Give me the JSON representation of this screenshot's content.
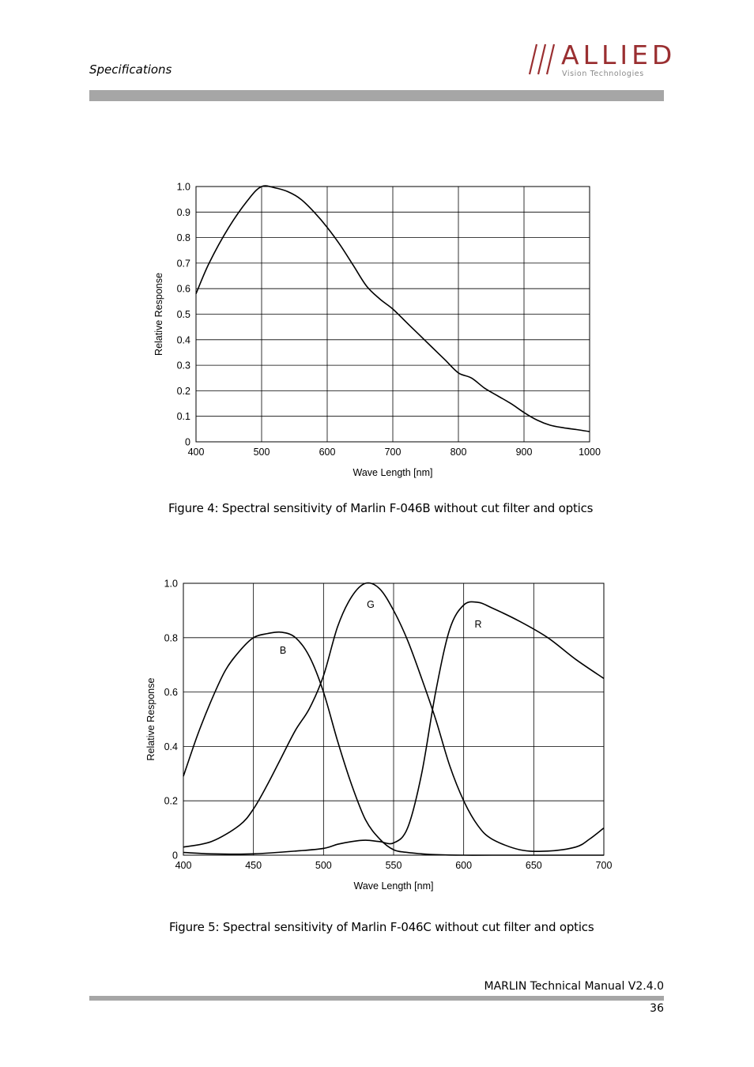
{
  "header": {
    "section": "Specifications",
    "logo_word": "ALLIED",
    "logo_tagline": "Vision Technologies",
    "logo_color": "#9a2f31"
  },
  "figures": [
    {
      "caption": "Figure 4: Spectral sensitivity of Marlin F-046B without cut filter and optics"
    },
    {
      "caption": "Figure 5: Spectral sensitivity of Marlin F-046C without cut filter and optics"
    }
  ],
  "chart_data": [
    {
      "type": "line",
      "xlabel": "Wave Length [nm]",
      "ylabel": "Relative Response",
      "xlim": [
        400,
        1000
      ],
      "ylim": [
        0,
        1.0
      ],
      "x_ticks": [
        400,
        500,
        600,
        700,
        800,
        900,
        1000
      ],
      "x_tick_labels": [
        "400",
        "500",
        "600",
        "700",
        "800",
        "900",
        "1000"
      ],
      "y_ticks": [
        0,
        0.1,
        0.2,
        0.3,
        0.4,
        0.5,
        0.6,
        0.7,
        0.8,
        0.9,
        1.0
      ],
      "y_tick_labels": [
        "0",
        "0.1",
        "0.2",
        "0.3",
        "0.4",
        "0.5",
        "0.6",
        "0.7",
        "0.8",
        "0.9",
        "1.0"
      ],
      "grid": true,
      "series": [
        {
          "x": [
            400,
            420,
            450,
            480,
            500,
            520,
            540,
            560,
            580,
            600,
            620,
            640,
            660,
            680,
            700,
            720,
            740,
            760,
            780,
            800,
            820,
            840,
            860,
            880,
            900,
            920,
            940,
            960,
            980,
            1000
          ],
          "values": [
            0.58,
            0.7,
            0.84,
            0.95,
            1.0,
            0.995,
            0.98,
            0.95,
            0.9,
            0.84,
            0.77,
            0.69,
            0.61,
            0.56,
            0.52,
            0.47,
            0.42,
            0.37,
            0.32,
            0.27,
            0.25,
            0.21,
            0.18,
            0.15,
            0.115,
            0.085,
            0.065,
            0.055,
            0.048,
            0.04
          ]
        }
      ]
    },
    {
      "type": "line",
      "xlabel": "Wave Length [nm]",
      "ylabel": "Relative Response",
      "xlim": [
        400,
        700
      ],
      "ylim": [
        0,
        1.0
      ],
      "x_ticks": [
        400,
        450,
        500,
        550,
        600,
        650,
        700
      ],
      "x_tick_labels": [
        "400",
        "450",
        "500",
        "550",
        "600",
        "650",
        "700"
      ],
      "y_ticks": [
        0,
        0.2,
        0.4,
        0.6,
        0.8,
        1.0
      ],
      "y_tick_labels": [
        "0",
        "0.2",
        "0.4",
        "0.6",
        "0.8",
        "1.0"
      ],
      "grid": true,
      "series": [
        {
          "name": "B",
          "x": [
            400,
            410,
            420,
            430,
            440,
            450,
            460,
            470,
            480,
            490,
            500,
            510,
            520,
            530,
            540,
            550,
            560,
            570,
            580,
            600,
            620,
            650,
            680,
            700
          ],
          "values": [
            0.29,
            0.44,
            0.57,
            0.68,
            0.75,
            0.8,
            0.815,
            0.82,
            0.8,
            0.73,
            0.6,
            0.42,
            0.26,
            0.13,
            0.06,
            0.02,
            0.01,
            0.005,
            0.002,
            0.0,
            0.0,
            0.0,
            0.0,
            0.0
          ]
        },
        {
          "name": "G",
          "x": [
            400,
            420,
            440,
            450,
            460,
            470,
            480,
            490,
            500,
            510,
            520,
            530,
            540,
            550,
            560,
            570,
            580,
            590,
            600,
            610,
            620,
            640,
            660,
            680,
            690,
            700
          ],
          "values": [
            0.03,
            0.05,
            0.11,
            0.17,
            0.26,
            0.36,
            0.46,
            0.54,
            0.66,
            0.84,
            0.95,
            1.0,
            0.98,
            0.9,
            0.79,
            0.65,
            0.5,
            0.33,
            0.2,
            0.11,
            0.06,
            0.02,
            0.015,
            0.03,
            0.06,
            0.1
          ]
        },
        {
          "name": "R",
          "x": [
            400,
            420,
            450,
            480,
            500,
            510,
            520,
            530,
            540,
            550,
            560,
            570,
            580,
            590,
            600,
            610,
            620,
            640,
            660,
            680,
            700
          ],
          "values": [
            0.01,
            0.005,
            0.005,
            0.015,
            0.025,
            0.04,
            0.05,
            0.055,
            0.05,
            0.045,
            0.1,
            0.3,
            0.6,
            0.83,
            0.92,
            0.93,
            0.91,
            0.86,
            0.8,
            0.72,
            0.65
          ]
        }
      ]
    }
  ],
  "footer": {
    "manual_title": "MARLIN Technical Manual V2.4.0",
    "page_number": "36"
  }
}
